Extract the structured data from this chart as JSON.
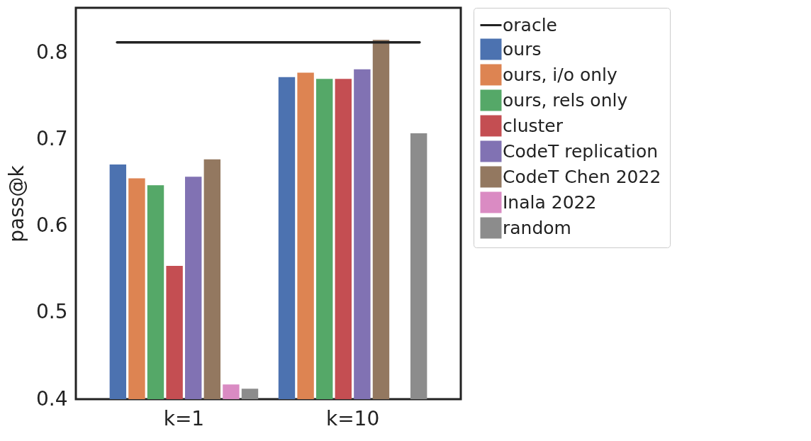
{
  "chart_data": {
    "type": "bar",
    "ylabel": "pass@k",
    "categories": [
      "k=1",
      "k=10"
    ],
    "ylim": [
      0.4,
      0.852
    ],
    "yticks": [
      0.4,
      0.5,
      0.6,
      0.7,
      0.8
    ],
    "grid": false,
    "legend": "right",
    "ref_lines": [
      {
        "axis": "y",
        "value": 0.812,
        "label": "oracle",
        "color": "#222222",
        "line_style": "solid"
      }
    ],
    "series": [
      {
        "name": "ours",
        "color": "#4c72b0",
        "values": [
          0.671,
          0.772
        ]
      },
      {
        "name": "ours, i/o only",
        "color": "#dd8452",
        "values": [
          0.655,
          0.777
        ]
      },
      {
        "name": "ours, rels only",
        "color": "#55a868",
        "values": [
          0.647,
          0.77
        ]
      },
      {
        "name": "cluster",
        "color": "#c44e52",
        "values": [
          0.554,
          0.77
        ]
      },
      {
        "name": "CodeT replication",
        "color": "#8172b3",
        "values": [
          0.657,
          0.781
        ]
      },
      {
        "name": "CodeT Chen 2022",
        "color": "#937860",
        "values": [
          0.677,
          0.815
        ]
      },
      {
        "name": "Inala 2022",
        "color": "#da8bc3",
        "values": [
          0.417,
          null
        ]
      },
      {
        "name": "random",
        "color": "#8c8c8c",
        "values": [
          0.412,
          0.707
        ]
      }
    ]
  }
}
